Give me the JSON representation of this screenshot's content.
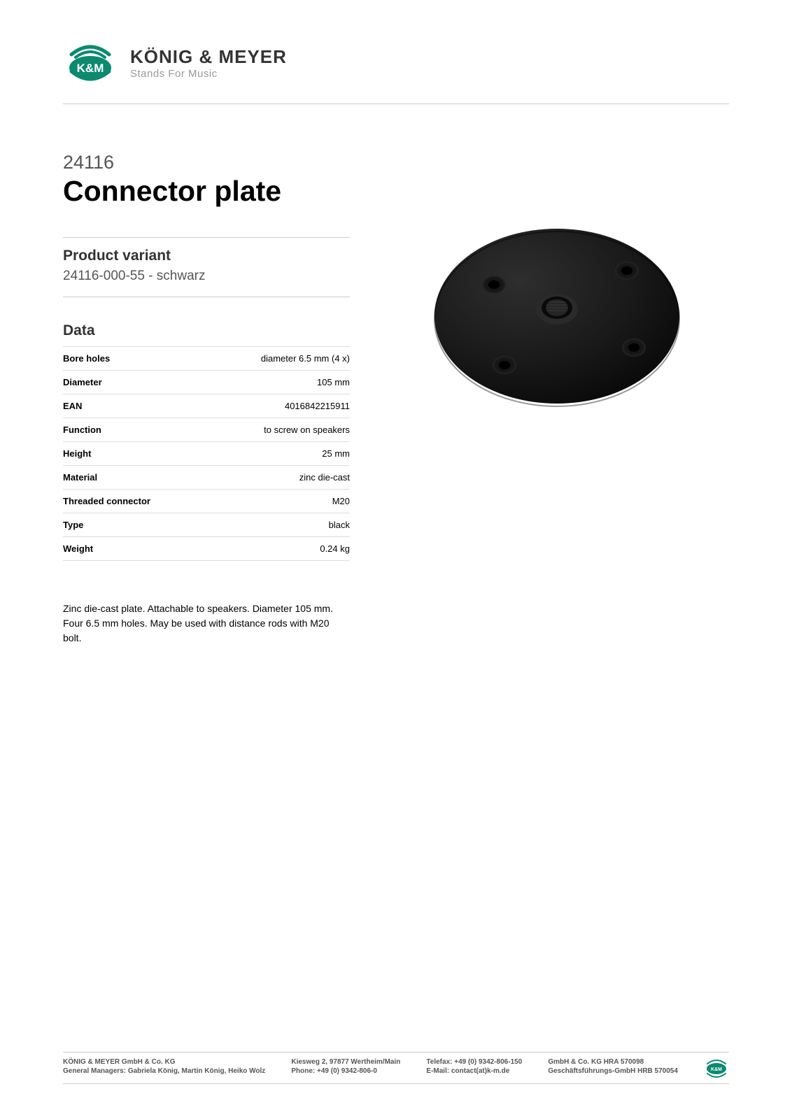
{
  "brand": {
    "name": "KÖNIG & MEYER",
    "tagline": "Stands For Music",
    "logo_text": "K&M",
    "logo_color": "#0b8a6f",
    "logo_text_color": "#333333",
    "tagline_color": "#999999"
  },
  "product": {
    "number": "24116",
    "title": "Connector plate"
  },
  "variant": {
    "heading": "Product variant",
    "line": "24116-000-55 - schwarz"
  },
  "data": {
    "heading": "Data",
    "rows": [
      {
        "label": "Bore holes",
        "value": "diameter 6.5 mm (4 x)"
      },
      {
        "label": "Diameter",
        "value": "105 mm"
      },
      {
        "label": "EAN",
        "value": "4016842215911"
      },
      {
        "label": "Function",
        "value": "to screw on speakers"
      },
      {
        "label": "Height",
        "value": "25 mm"
      },
      {
        "label": "Material",
        "value": "zinc die-cast"
      },
      {
        "label": "Threaded connector",
        "value": "M20"
      },
      {
        "label": "Type",
        "value": "black"
      },
      {
        "label": "Weight",
        "value": "0.24 kg"
      }
    ]
  },
  "description": "Zinc die-cast plate. Attachable to speakers. Diameter 105 mm. Four 6.5 mm holes. May be used with distance rods with M20 bolt.",
  "image": {
    "plate_color": "#1a1a1a",
    "plate_highlight": "#2e2e2e",
    "plate_shadow": "#0a0a0a",
    "hole_color": "#3a3a3a",
    "center_thread_color": "#252525"
  },
  "footer": {
    "col1": {
      "line1": "KÖNIG & MEYER GmbH & Co. KG",
      "line2": "General Managers: Gabriela König, Martin König, Heiko Wolz"
    },
    "col2": {
      "line1": "Kiesweg 2, 97877 Wertheim/Main",
      "line2": "Phone:   +49 (0) 9342-806-0"
    },
    "col3": {
      "line1": "Telefax: +49 (0) 9342-806-150",
      "line2": "E-Mail: contact(at)k-m.de"
    },
    "col4": {
      "line1": "GmbH & Co. KG HRA 570098",
      "line2": "Geschäftsführungs-GmbH HRB 570054"
    }
  },
  "colors": {
    "page_bg": "#ffffff",
    "hr": "#cccccc",
    "text": "#000000",
    "muted": "#555555"
  }
}
